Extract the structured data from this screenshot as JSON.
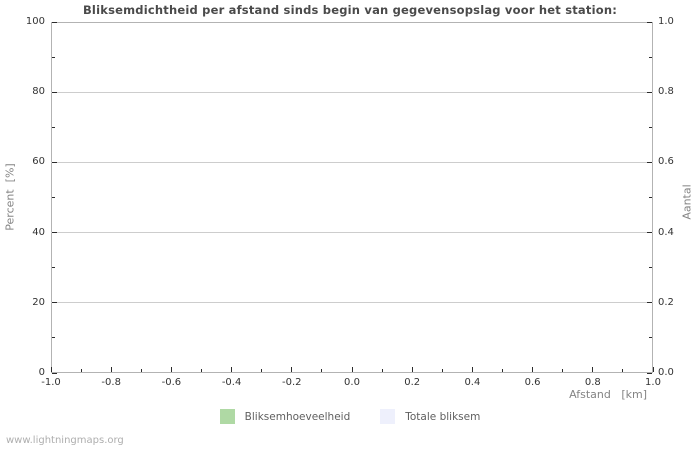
{
  "chart_data": {
    "type": "bar",
    "title": "Bliksemdichtheid per afstand sinds begin van gegevensopslag voor het station:",
    "xlabel": "Afstand   [km]",
    "ylabel_left": "Percent  [%]",
    "ylabel_right": "Aantal",
    "xlim": [
      -1.0,
      1.0
    ],
    "ylim_left": [
      0,
      100
    ],
    "ylim_right": [
      0.0,
      1.0
    ],
    "grid": true,
    "legend_position": "bottom",
    "x_tick_labels": [
      "-1.0",
      "-0.8",
      "-0.6",
      "-0.4",
      "-0.2",
      "0.0",
      "0.2",
      "0.4",
      "0.6",
      "0.8",
      "1.0"
    ],
    "y_left_tick_labels": [
      "0",
      "20",
      "40",
      "60",
      "80",
      "100"
    ],
    "y_right_tick_labels": [
      "0.0",
      "0.2",
      "0.4",
      "0.6",
      "0.8",
      "1.0"
    ],
    "categories": [],
    "series": [
      {
        "name": "Bliksemhoeveelheid",
        "color": "#afd9a4",
        "values": []
      },
      {
        "name": "Totale bliksem",
        "color": "#eef0fc",
        "values": []
      }
    ]
  },
  "legend": {
    "items": [
      {
        "label": "Bliksemhoeveelheid",
        "color": "#afd9a4"
      },
      {
        "label": "Totale bliksem",
        "color": "#eef0fc"
      }
    ]
  },
  "footer": {
    "text": "www.lightningmaps.org"
  },
  "colors": {
    "background": "#ffffff",
    "plot_border": "#b3b3b3",
    "gridline": "#cdcdcd",
    "tick_mark": "#2b2b2b",
    "tick_label": "#333333",
    "axis_label": "#848484",
    "title": "#4a4a4a",
    "legend_text": "#5f5f5f",
    "footer_text": "#aeaeae"
  }
}
